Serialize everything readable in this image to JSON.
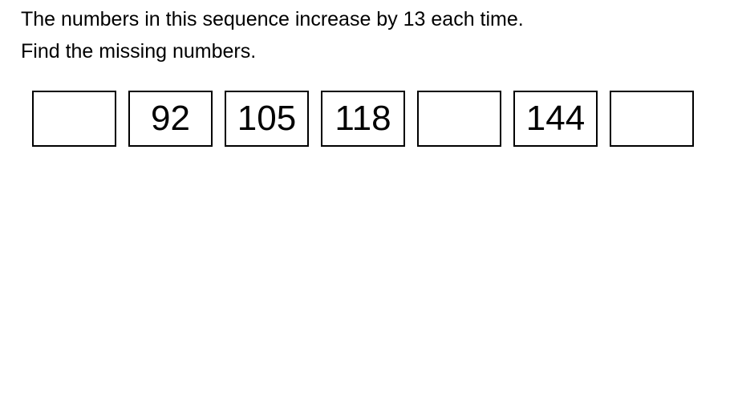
{
  "instructions": {
    "line1": "The numbers in this sequence increase by 13 each time.",
    "line2": "Find the missing numbers."
  },
  "sequence": {
    "boxes": [
      {
        "value": "",
        "type": "answer"
      },
      {
        "value": "92",
        "type": "given"
      },
      {
        "value": "105",
        "type": "given"
      },
      {
        "value": "118",
        "type": "given"
      },
      {
        "value": "",
        "type": "answer"
      },
      {
        "value": "144",
        "type": "given"
      },
      {
        "value": "",
        "type": "answer"
      }
    ]
  },
  "colors": {
    "text": "#000000",
    "box_border": "#000000",
    "background": "#ffffff"
  }
}
